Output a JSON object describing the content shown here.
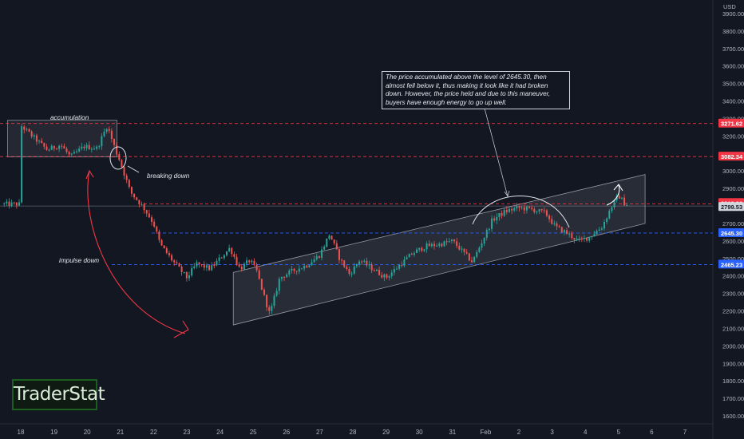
{
  "chart_data": {
    "type": "line",
    "subtype": "candlestick",
    "currency": "USD",
    "x_ticks": [
      "18",
      "19",
      "20",
      "21",
      "22",
      "23",
      "24",
      "25",
      "26",
      "27",
      "28",
      "29",
      "30",
      "31",
      "Feb",
      "2",
      "3",
      "4",
      "5",
      "6",
      "7"
    ],
    "y_ticks": [
      3900,
      3800,
      3700,
      3600,
      3500,
      3400,
      3300,
      3200,
      3100,
      3000,
      2900,
      2800,
      2700,
      2600,
      2500,
      2400,
      2300,
      2200,
      2100,
      2000,
      1900,
      1800,
      1700,
      1600
    ],
    "ylim": [
      1580,
      3980
    ],
    "horizontal_levels": [
      {
        "value": 3271.62,
        "label": "3271.62",
        "color": "#f23645",
        "style": "dashed"
      },
      {
        "value": 3082.34,
        "label": "3082.34",
        "color": "#f23645",
        "style": "dashed"
      },
      {
        "value": 2812.3,
        "label": "2812.30",
        "color": "#f23645",
        "style": "dashed"
      },
      {
        "value": 2645.3,
        "label": "2645.30",
        "color": "#2962ff",
        "style": "dashed"
      },
      {
        "value": 2465.23,
        "label": "2465.23",
        "color": "#2962ff",
        "style": "dashed"
      }
    ],
    "current_price": {
      "value": 2799.53,
      "label": "2799.53"
    },
    "price_path": [
      {
        "x": 0.0,
        "y": 3260
      },
      {
        "x": 0.4,
        "y": 3190
      },
      {
        "x": 0.8,
        "y": 3120
      },
      {
        "x": 1.2,
        "y": 3150
      },
      {
        "x": 1.5,
        "y": 3080
      },
      {
        "x": 1.9,
        "y": 3140
      },
      {
        "x": 2.3,
        "y": 3130
      },
      {
        "x": 2.6,
        "y": 3260
      },
      {
        "x": 2.8,
        "y": 3150
      },
      {
        "x": 3.0,
        "y": 3050
      },
      {
        "x": 3.3,
        "y": 2880
      },
      {
        "x": 3.7,
        "y": 2790
      },
      {
        "x": 4.0,
        "y": 2700
      },
      {
        "x": 4.2,
        "y": 2580
      },
      {
        "x": 4.6,
        "y": 2480
      },
      {
        "x": 5.0,
        "y": 2390
      },
      {
        "x": 5.3,
        "y": 2470
      },
      {
        "x": 5.7,
        "y": 2440
      },
      {
        "x": 6.0,
        "y": 2500
      },
      {
        "x": 6.3,
        "y": 2560
      },
      {
        "x": 6.6,
        "y": 2440
      },
      {
        "x": 6.9,
        "y": 2490
      },
      {
        "x": 7.1,
        "y": 2430
      },
      {
        "x": 7.3,
        "y": 2300
      },
      {
        "x": 7.5,
        "y": 2180
      },
      {
        "x": 7.8,
        "y": 2390
      },
      {
        "x": 8.2,
        "y": 2430
      },
      {
        "x": 8.6,
        "y": 2460
      },
      {
        "x": 9.0,
        "y": 2520
      },
      {
        "x": 9.3,
        "y": 2640
      },
      {
        "x": 9.6,
        "y": 2500
      },
      {
        "x": 9.9,
        "y": 2410
      },
      {
        "x": 10.2,
        "y": 2490
      },
      {
        "x": 10.6,
        "y": 2440
      },
      {
        "x": 11.0,
        "y": 2390
      },
      {
        "x": 11.4,
        "y": 2460
      },
      {
        "x": 11.8,
        "y": 2530
      },
      {
        "x": 12.2,
        "y": 2570
      },
      {
        "x": 12.6,
        "y": 2580
      },
      {
        "x": 13.0,
        "y": 2600
      },
      {
        "x": 13.3,
        "y": 2540
      },
      {
        "x": 13.6,
        "y": 2480
      },
      {
        "x": 13.9,
        "y": 2600
      },
      {
        "x": 14.2,
        "y": 2720
      },
      {
        "x": 14.6,
        "y": 2770
      },
      {
        "x": 15.0,
        "y": 2790
      },
      {
        "x": 15.4,
        "y": 2780
      },
      {
        "x": 15.8,
        "y": 2760
      },
      {
        "x": 16.1,
        "y": 2680
      },
      {
        "x": 16.4,
        "y": 2650
      },
      {
        "x": 16.8,
        "y": 2600
      },
      {
        "x": 17.1,
        "y": 2620
      },
      {
        "x": 17.5,
        "y": 2680
      },
      {
        "x": 17.8,
        "y": 2800
      },
      {
        "x": 18.0,
        "y": 2860
      },
      {
        "x": 18.2,
        "y": 2810
      }
    ],
    "channel": {
      "lower": [
        {
          "x": 6.4,
          "y": 2120
        },
        {
          "x": 18.8,
          "y": 2700
        }
      ],
      "upper": [
        {
          "x": 6.4,
          "y": 2420
        },
        {
          "x": 18.8,
          "y": 2980
        }
      ]
    },
    "accumulation_box": {
      "x0": -0.4,
      "x1": 2.9,
      "y0": 3080,
      "y1": 3290
    }
  },
  "axis": {
    "currency_label": "USD",
    "price_tags": {
      "l3271": "3271.62",
      "l3082": "3082.34",
      "l2812": "2812.30",
      "l2799": "2799.53",
      "l2645": "2645.30",
      "l2465": "2465.23"
    }
  },
  "annotations": {
    "accumulation": "accumulation",
    "breaking_down": "breaking down",
    "impulse_down": "impulse down",
    "note": "The price accumulated above the level of 2645.30, then almost fell below it, thus making it look like it had broken down. However, the price held and due to this maneuver, buyers have enough energy to go up well."
  },
  "logo": {
    "text": "TraderStat"
  },
  "colors": {
    "background": "#131722",
    "up": "#26a69a",
    "down": "#ef5350",
    "red_level": "#f23645",
    "blue_level": "#2962ff"
  }
}
